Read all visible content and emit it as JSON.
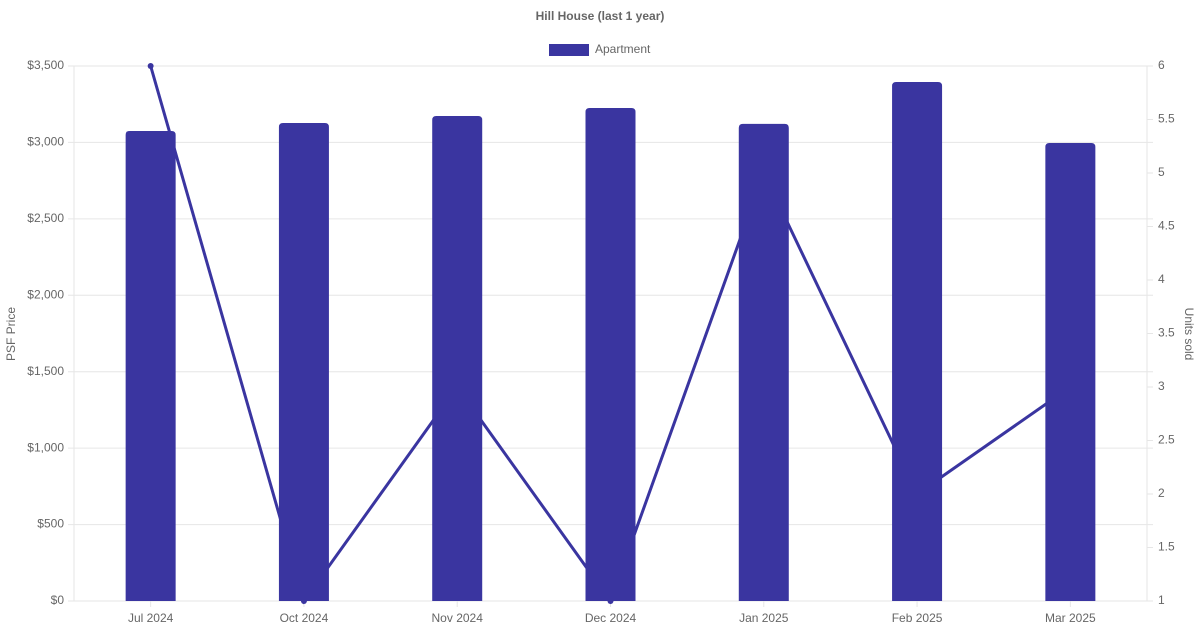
{
  "chart_data": {
    "type": "bar-line",
    "title": "Hill House (last 1 year)",
    "y_label": "PSF Price",
    "y2_label": "Units sold",
    "categories": [
      "Jul 2024",
      "Oct 2024",
      "Nov 2024",
      "Dec 2024",
      "Jan 2025",
      "Feb 2025",
      "Mar 2025"
    ],
    "series": [
      {
        "name": "Apartment",
        "type": "bar",
        "color": "#3a35a0",
        "values": [
          3075,
          3127,
          3173,
          3225,
          3121,
          3395,
          2996
        ]
      },
      {
        "type": "line",
        "axis": "y2",
        "color": "#3a35a0",
        "values": [
          6,
          1,
          3,
          1,
          5,
          2,
          3
        ]
      }
    ],
    "ylim": [
      0,
      3500
    ],
    "yticks": [
      {
        "value": 0,
        "label": "$0"
      },
      {
        "value": 500,
        "label": "$500"
      },
      {
        "value": 1000,
        "label": "$1,000"
      },
      {
        "value": 1500,
        "label": "$1,500"
      },
      {
        "value": 2000,
        "label": "$2,000"
      },
      {
        "value": 2500,
        "label": "$2,500"
      },
      {
        "value": 3000,
        "label": "$3,000"
      },
      {
        "value": 3500,
        "label": "$3,500"
      }
    ],
    "y2lim": [
      1,
      6
    ],
    "y2ticks": [
      1,
      1.5,
      2,
      2.5,
      3,
      3.5,
      4,
      4.5,
      5,
      5.5,
      6
    ],
    "grid": true,
    "legend": "top"
  }
}
